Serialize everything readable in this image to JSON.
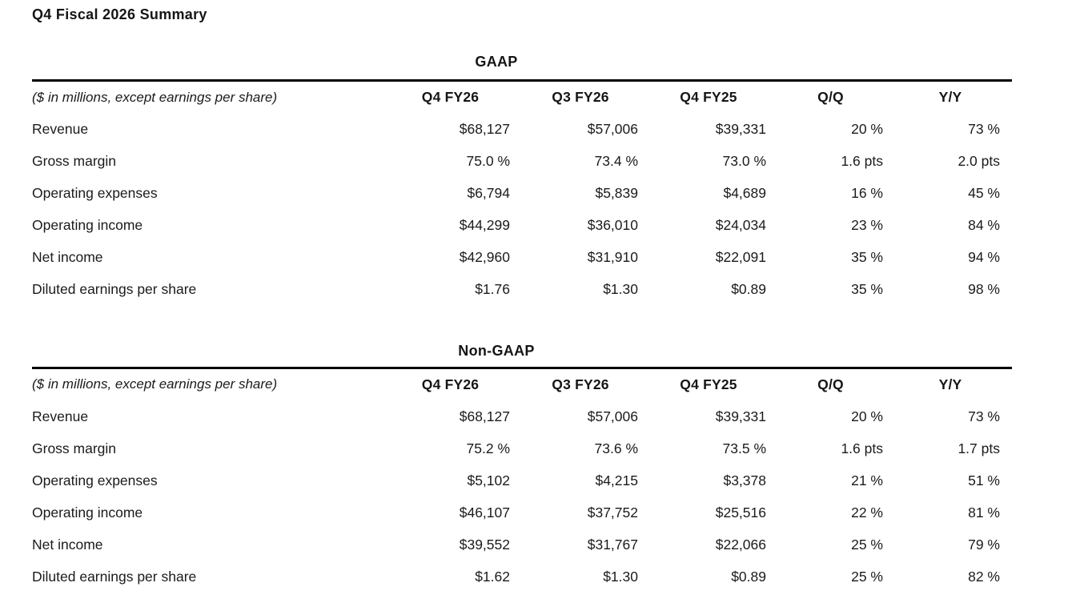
{
  "page": {
    "title": "Q4 Fiscal 2026 Summary"
  },
  "colors": {
    "background": "#ffffff",
    "text": "#1b1b1b",
    "rule": "#000000"
  },
  "tables": [
    {
      "title": "GAAP",
      "unit_note": "($ in millions, except earnings per share)",
      "columns": [
        "Q4 FY26",
        "Q3 FY26",
        "Q4 FY25",
        "Q/Q",
        "Y/Y"
      ],
      "rows": [
        {
          "label": "Revenue",
          "values": [
            "$68,127",
            "$57,006",
            "$39,331",
            "20 %",
            "73 %"
          ]
        },
        {
          "label": "Gross margin",
          "values": [
            "75.0 %",
            "73.4 %",
            "73.0 %",
            "1.6 pts",
            "2.0 pts"
          ]
        },
        {
          "label": "Operating expenses",
          "values": [
            "$6,794",
            "$5,839",
            "$4,689",
            "16 %",
            "45 %"
          ]
        },
        {
          "label": "Operating income",
          "values": [
            "$44,299",
            "$36,010",
            "$24,034",
            "23 %",
            "84 %"
          ]
        },
        {
          "label": "Net income",
          "values": [
            "$42,960",
            "$31,910",
            "$22,091",
            "35 %",
            "94 %"
          ]
        },
        {
          "label": "Diluted earnings per share",
          "values": [
            "$1.76",
            "$1.30",
            "$0.89",
            "35 %",
            "98 %"
          ]
        }
      ]
    },
    {
      "title": "Non-GAAP",
      "unit_note": "($ in millions, except earnings per share)",
      "columns": [
        "Q4 FY26",
        "Q3 FY26",
        "Q4 FY25",
        "Q/Q",
        "Y/Y"
      ],
      "rows": [
        {
          "label": "Revenue",
          "values": [
            "$68,127",
            "$57,006",
            "$39,331",
            "20 %",
            "73 %"
          ]
        },
        {
          "label": "Gross margin",
          "values": [
            "75.2 %",
            "73.6 %",
            "73.5 %",
            "1.6 pts",
            "1.7 pts"
          ]
        },
        {
          "label": "Operating expenses",
          "values": [
            "$5,102",
            "$4,215",
            "$3,378",
            "21 %",
            "51 %"
          ]
        },
        {
          "label": "Operating income",
          "values": [
            "$46,107",
            "$37,752",
            "$25,516",
            "22 %",
            "81 %"
          ]
        },
        {
          "label": "Net income",
          "values": [
            "$39,552",
            "$31,767",
            "$22,066",
            "25 %",
            "79 %"
          ]
        },
        {
          "label": "Diluted earnings per share",
          "values": [
            "$1.62",
            "$1.30",
            "$0.89",
            "25 %",
            "82 %"
          ]
        }
      ]
    }
  ]
}
